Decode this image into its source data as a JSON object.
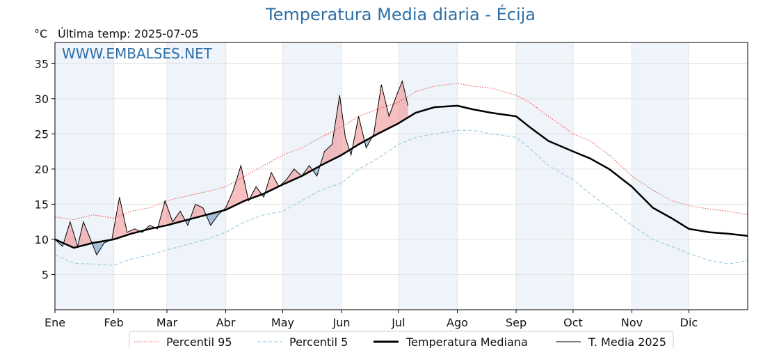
{
  "title": "Temperatura Media diaria - Écija",
  "unit": "°C",
  "last_temp_label": "Última temp: 2025-07-05",
  "watermark": "WWW.EMBALSES.NET",
  "colors": {
    "title": "#2e6fa7",
    "p95": "#e8403a",
    "p5": "#9fcfe3",
    "median": "#000000",
    "above_fill": "#f08a8a",
    "below_fill": "#6f96b9",
    "month_band": "#eef4fa"
  },
  "chart_data": {
    "type": "line",
    "title": "Temperatura Media diaria - Écija",
    "ylabel": "°C",
    "xlabel": "",
    "ylim": [
      0,
      38
    ],
    "xlim": [
      0,
      365
    ],
    "yticks": [
      5,
      10,
      15,
      20,
      25,
      30,
      35
    ],
    "grid": true,
    "legend_position": "bottom",
    "months": [
      {
        "label": "Ene",
        "start": 0
      },
      {
        "label": "Feb",
        "start": 31
      },
      {
        "label": "Mar",
        "start": 59
      },
      {
        "label": "Abr",
        "start": 90
      },
      {
        "label": "May",
        "start": 120
      },
      {
        "label": "Jun",
        "start": 151
      },
      {
        "label": "Jul",
        "start": 181
      },
      {
        "label": "Ago",
        "start": 212
      },
      {
        "label": "Sep",
        "start": 243
      },
      {
        "label": "Oct",
        "start": 273
      },
      {
        "label": "Nov",
        "start": 304
      },
      {
        "label": "Dic",
        "start": 334
      }
    ],
    "series": [
      {
        "name": "Percentil 95",
        "style": "dotted",
        "x": [
          0,
          10,
          20,
          31,
          40,
          50,
          59,
          70,
          80,
          90,
          100,
          110,
          120,
          130,
          140,
          151,
          160,
          170,
          181,
          190,
          200,
          212,
          220,
          230,
          243,
          250,
          260,
          273,
          282,
          292,
          304,
          315,
          325,
          334,
          345,
          355,
          365
        ],
        "y": [
          13.2,
          12.8,
          13.5,
          13.0,
          14.0,
          14.5,
          15.5,
          16.2,
          16.8,
          17.5,
          19.0,
          20.5,
          22.0,
          23.0,
          24.5,
          26.0,
          27.5,
          28.5,
          29.5,
          31.0,
          31.8,
          32.2,
          31.8,
          31.5,
          30.5,
          29.5,
          27.5,
          25.0,
          24.0,
          22.0,
          19.0,
          17.0,
          15.5,
          14.8,
          14.3,
          14.0,
          13.5
        ]
      },
      {
        "name": "Percentil 5",
        "style": "dashed",
        "x": [
          0,
          10,
          20,
          31,
          40,
          50,
          59,
          70,
          80,
          90,
          100,
          110,
          120,
          130,
          140,
          151,
          160,
          170,
          181,
          190,
          200,
          212,
          220,
          230,
          243,
          250,
          260,
          273,
          282,
          292,
          304,
          315,
          325,
          334,
          345,
          355,
          365
        ],
        "y": [
          7.8,
          6.6,
          6.5,
          6.3,
          7.2,
          7.8,
          8.5,
          9.3,
          10.0,
          11.0,
          12.5,
          13.5,
          14.0,
          15.5,
          17.0,
          18.0,
          20.0,
          21.5,
          23.5,
          24.5,
          25.0,
          25.5,
          25.5,
          25.0,
          24.5,
          23.0,
          20.5,
          18.5,
          16.5,
          14.5,
          12.0,
          10.0,
          9.0,
          8.0,
          7.0,
          6.5,
          7.0
        ]
      },
      {
        "name": "Temperatura Mediana",
        "style": "solid-bold",
        "x": [
          0,
          10,
          20,
          31,
          40,
          50,
          59,
          70,
          80,
          90,
          100,
          110,
          120,
          130,
          140,
          151,
          160,
          170,
          181,
          190,
          200,
          212,
          220,
          230,
          243,
          250,
          260,
          273,
          282,
          292,
          304,
          315,
          325,
          334,
          345,
          355,
          365
        ],
        "y": [
          10.0,
          8.8,
          9.5,
          10.0,
          10.8,
          11.5,
          12.0,
          12.8,
          13.5,
          14.2,
          15.5,
          16.5,
          17.8,
          19.0,
          20.5,
          22.0,
          23.5,
          25.0,
          26.5,
          28.0,
          28.8,
          29.0,
          28.5,
          28.0,
          27.5,
          26.0,
          24.0,
          22.5,
          21.5,
          20.0,
          17.5,
          14.5,
          13.0,
          11.5,
          11.0,
          10.8,
          10.5
        ]
      },
      {
        "name": "T. Media 2025",
        "style": "solid-thin",
        "x": [
          0,
          4,
          8,
          12,
          15,
          18,
          22,
          26,
          30,
          34,
          38,
          42,
          46,
          50,
          54,
          58,
          62,
          66,
          70,
          74,
          78,
          82,
          86,
          90,
          94,
          98,
          102,
          106,
          110,
          114,
          118,
          122,
          126,
          130,
          134,
          138,
          142,
          146,
          150,
          153,
          156,
          160,
          164,
          168,
          172,
          176,
          180,
          183,
          186
        ],
        "y": [
          10.0,
          9.0,
          12.5,
          9.0,
          12.5,
          10.5,
          7.8,
          9.5,
          10.0,
          16.0,
          11.0,
          11.5,
          11.0,
          12.0,
          11.5,
          15.5,
          12.5,
          14.0,
          12.0,
          15.0,
          14.5,
          12.0,
          13.5,
          14.5,
          17.0,
          20.5,
          15.5,
          17.5,
          16.0,
          19.5,
          17.5,
          18.5,
          20.0,
          19.0,
          20.5,
          19.0,
          22.5,
          23.5,
          30.5,
          24.5,
          22.0,
          27.5,
          23.0,
          25.0,
          32.0,
          27.5,
          30.5,
          32.5,
          29.0
        ]
      }
    ]
  },
  "legend": [
    {
      "label": "Percentil 95",
      "style": "dotted"
    },
    {
      "label": "Percentil 5",
      "style": "dashed"
    },
    {
      "label": "Temperatura Mediana",
      "style": "solid-bold"
    },
    {
      "label": "T. Media 2025",
      "style": "solid-thin"
    }
  ]
}
